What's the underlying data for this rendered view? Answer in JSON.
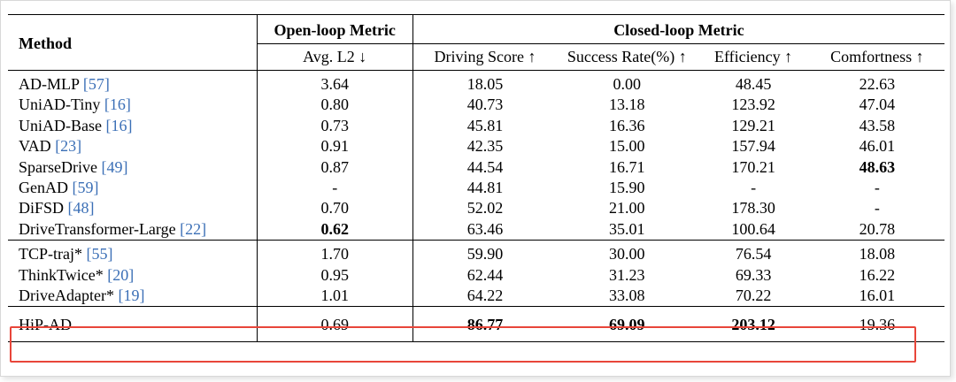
{
  "table": {
    "header": {
      "method": "Method",
      "open_loop": "Open-loop Metric",
      "closed_loop": "Closed-loop Metric",
      "columns": [
        "Avg. L2 ↓",
        "Driving Score ↑",
        "Success Rate(%) ↑",
        "Efficiency ↑",
        "Comfortness ↑"
      ]
    },
    "group1": [
      {
        "name": "AD-MLP ",
        "cite": "[57]",
        "l2": "3.64",
        "ds": "18.05",
        "sr": "0.00",
        "ef": "48.45",
        "co": "22.63"
      },
      {
        "name": "UniAD-Tiny ",
        "cite": "[16]",
        "l2": "0.80",
        "ds": "40.73",
        "sr": "13.18",
        "ef": "123.92",
        "co": "47.04"
      },
      {
        "name": "UniAD-Base ",
        "cite": "[16]",
        "l2": "0.73",
        "ds": "45.81",
        "sr": "16.36",
        "ef": "129.21",
        "co": "43.58"
      },
      {
        "name": "VAD ",
        "cite": "[23]",
        "l2": "0.91",
        "ds": "42.35",
        "sr": "15.00",
        "ef": "157.94",
        "co": "46.01"
      },
      {
        "name": "SparseDrive ",
        "cite": "[49]",
        "l2": "0.87",
        "ds": "44.54",
        "sr": "16.71",
        "ef": "170.21",
        "co": "48.63"
      },
      {
        "name": "GenAD ",
        "cite": "[59]",
        "l2": "-",
        "ds": "44.81",
        "sr": "15.90",
        "ef": "-",
        "co": "-"
      },
      {
        "name": "DiFSD ",
        "cite": "[48]",
        "l2": "0.70",
        "ds": "52.02",
        "sr": "21.00",
        "ef": "178.30",
        "co": "-"
      },
      {
        "name": "DriveTransformer-Large ",
        "cite": "[22]",
        "l2": "0.62",
        "ds": "63.46",
        "sr": "35.01",
        "ef": "100.64",
        "co": "20.78"
      }
    ],
    "group2": [
      {
        "name": "TCP-traj* ",
        "cite": "[55]",
        "l2": "1.70",
        "ds": "59.90",
        "sr": "30.00",
        "ef": "76.54",
        "co": "18.08"
      },
      {
        "name": "ThinkTwice* ",
        "cite": "[20]",
        "l2": "0.95",
        "ds": "62.44",
        "sr": "31.23",
        "ef": "69.33",
        "co": "16.22"
      },
      {
        "name": "DriveAdapter* ",
        "cite": "[19]",
        "l2": "1.01",
        "ds": "64.22",
        "sr": "33.08",
        "ef": "70.22",
        "co": "16.01"
      }
    ],
    "ours": {
      "name": "HiP-AD",
      "l2": "0.69",
      "ds": "86.77",
      "sr": "69.09",
      "ef": "203.12",
      "co": "19.36"
    },
    "highlight_color": "#e8463a",
    "citation_color": "#3b6fb6"
  }
}
